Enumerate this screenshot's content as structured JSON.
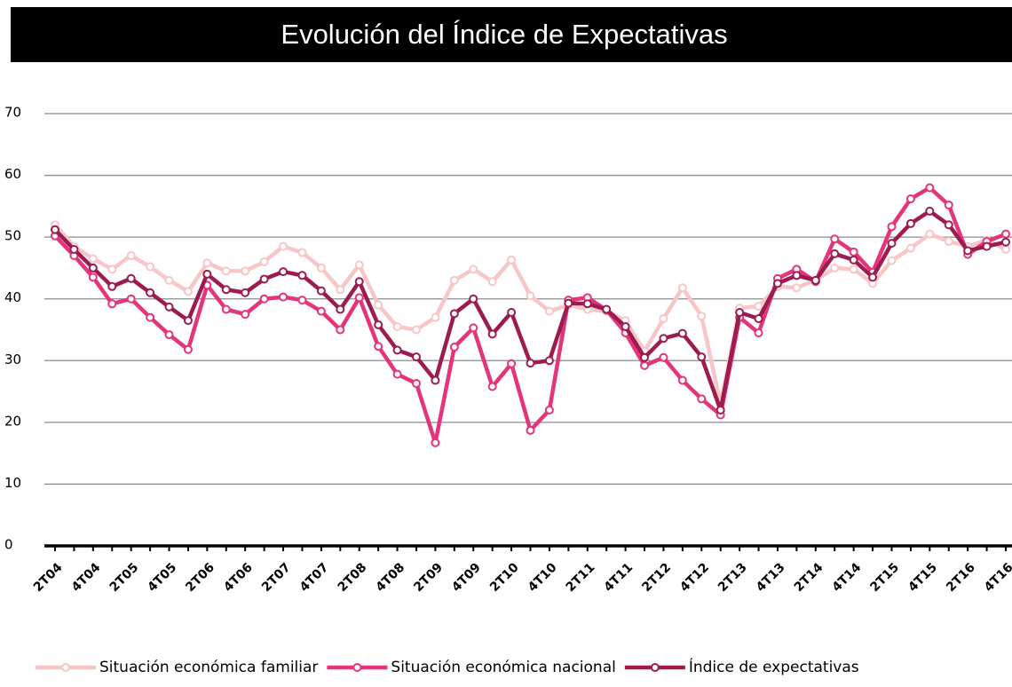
{
  "chart_data": {
    "type": "line",
    "title": "Evolución del Índice de Expectativas",
    "categories": [
      "2T04",
      null,
      "4T04",
      null,
      "2T05",
      null,
      "4T05",
      null,
      "2T06",
      null,
      "4T06",
      null,
      "2T07",
      null,
      "4T07",
      null,
      "2T08",
      null,
      "4T08",
      null,
      "2T09",
      null,
      "4T09",
      null,
      "2T10",
      null,
      "4T10",
      null,
      "2T11",
      null,
      "4T11",
      null,
      "2T12",
      null,
      "4T12",
      null,
      "2T13",
      null,
      "4T13",
      null,
      "2T14",
      null,
      "4T14",
      null,
      "2T15",
      null,
      "4T15",
      null,
      "2T16",
      null,
      "4T16"
    ],
    "series": [
      {
        "name": "Situación económica familiar",
        "color": "#f8c6c6",
        "values": [
          52,
          48.5,
          46.5,
          44.8,
          47,
          45.2,
          43,
          41.2,
          45.8,
          44.5,
          44.5,
          46,
          48.5,
          47.5,
          45,
          41.5,
          45.5,
          39,
          35.5,
          35,
          37,
          43,
          44.8,
          42.8,
          46.3,
          40.5,
          38,
          39,
          38.3,
          38,
          36.5,
          31.5,
          36.8,
          41.8,
          37.2,
          23,
          38.5,
          38.8,
          42,
          41.8,
          43,
          45,
          44.8,
          42.5,
          46.2,
          48.2,
          50.5,
          49.3,
          48.5,
          49.5,
          48
        ]
      },
      {
        "name": "Situación económica nacional",
        "color": "#e5347b",
        "values": [
          50.2,
          47,
          43.5,
          39.2,
          40,
          37,
          34.2,
          31.8,
          42.2,
          38.3,
          37.5,
          40,
          40.3,
          39.8,
          38,
          35,
          40.2,
          32.3,
          27.8,
          26.3,
          16.7,
          32.2,
          35.3,
          25.8,
          29.5,
          18.7,
          22,
          39.8,
          40.2,
          38.2,
          34.5,
          29.2,
          30.5,
          26.8,
          23.8,
          21.2,
          37,
          34.5,
          43.3,
          44.8,
          42.8,
          49.7,
          47.6,
          44.3,
          51.7,
          56.2,
          58,
          55.2,
          47.2,
          49.3,
          50.5
        ]
      },
      {
        "name": "Índice de expectativas",
        "color": "#9c1c50",
        "values": [
          51.2,
          48,
          45,
          42,
          43.3,
          41,
          38.7,
          36.5,
          44,
          41.5,
          41,
          43.2,
          44.4,
          43.8,
          41.3,
          38.3,
          42.8,
          35.8,
          31.7,
          30.6,
          26.8,
          37.6,
          40,
          34.3,
          37.8,
          29.6,
          30,
          39.3,
          39.2,
          38.3,
          35.5,
          30.5,
          33.6,
          34.4,
          30.6,
          22,
          37.8,
          36.8,
          42.5,
          43.8,
          43,
          47.3,
          46.3,
          43.5,
          49,
          52.2,
          54.2,
          52,
          47.8,
          48.5,
          49.2
        ]
      }
    ],
    "ylim": [
      0,
      70
    ],
    "yticks": [
      0,
      10,
      20,
      30,
      40,
      50,
      60,
      70
    ],
    "grid": true
  }
}
